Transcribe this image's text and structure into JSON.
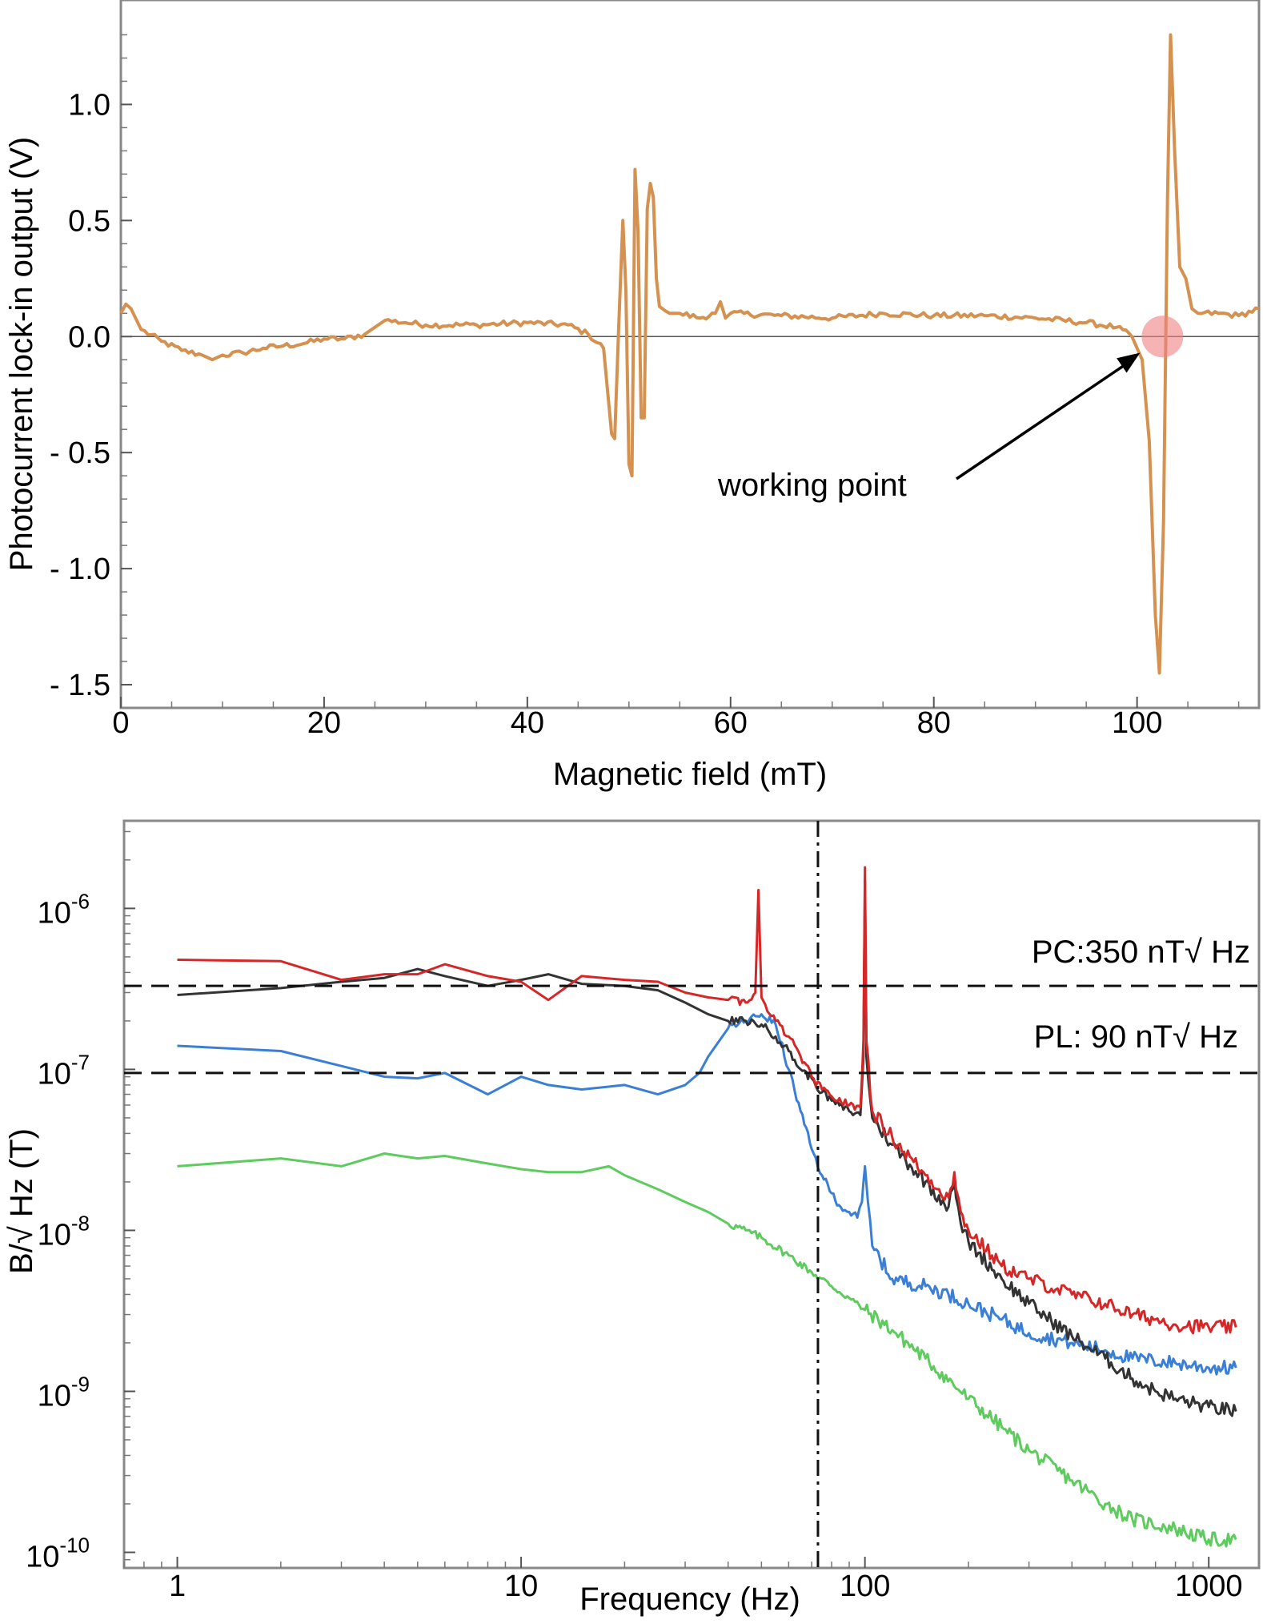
{
  "chart_data": [
    {
      "type": "line",
      "xlabel": "Magnetic field (mT)",
      "ylabel": "Photocurrent lock-in output (V)",
      "xlim": [
        0,
        112
      ],
      "ylim": [
        -1.6,
        1.45
      ],
      "xticks": [
        "0",
        "20",
        "40",
        "60",
        "80",
        "100"
      ],
      "yticks": [
        "1.0",
        "0.5",
        "0.0",
        "- 0.5",
        "- 1.0",
        "- 1.5"
      ],
      "grid": false,
      "annotation": {
        "text": "working point",
        "x": 102.5,
        "y": 0.0
      },
      "colors": {
        "series": "#d4914f",
        "marker": "#f08080",
        "zero_line": "#555555"
      },
      "series": [
        {
          "x": [
            0,
            0.5,
            1,
            2,
            4,
            6,
            8,
            9,
            10,
            12,
            14,
            16,
            18,
            20,
            22,
            24,
            25,
            26,
            28,
            30,
            35,
            40,
            44,
            46,
            47.5,
            48.3,
            48.6,
            49.0,
            49.4,
            49.7,
            50.0,
            50.3,
            50.6,
            50.9,
            51.2,
            51.5,
            51.8,
            52.1,
            52.4,
            52.7,
            53.0,
            53.3,
            53.6,
            54.0,
            55,
            57,
            58.5,
            59,
            59.5,
            60,
            65,
            70,
            75,
            80,
            85,
            90,
            95,
            98,
            99.5,
            100.5,
            101.2,
            101.8,
            102.2,
            102.6,
            103.0,
            103.3,
            103.7,
            104.2,
            104.8,
            105.4,
            106,
            108,
            110,
            112
          ],
          "y": [
            0.1,
            0.14,
            0.12,
            0.03,
            -0.02,
            -0.06,
            -0.08,
            -0.1,
            -0.08,
            -0.07,
            -0.05,
            -0.04,
            -0.03,
            -0.01,
            -0.01,
            0.01,
            0.04,
            0.07,
            0.06,
            0.05,
            0.05,
            0.06,
            0.05,
            0.01,
            -0.05,
            -0.42,
            -0.44,
            0.05,
            0.5,
            0.2,
            -0.55,
            -0.6,
            0.72,
            0.45,
            -0.35,
            -0.35,
            0.55,
            0.66,
            0.6,
            0.25,
            0.13,
            0.12,
            0.11,
            0.1,
            0.1,
            0.08,
            0.1,
            0.15,
            0.08,
            0.1,
            0.09,
            0.08,
            0.1,
            0.09,
            0.09,
            0.08,
            0.06,
            0.04,
            0.0,
            -0.1,
            -0.45,
            -1.2,
            -1.45,
            -0.8,
            0.6,
            1.3,
            0.8,
            0.3,
            0.25,
            0.12,
            0.1,
            0.1,
            0.09,
            0.12
          ]
        }
      ]
    },
    {
      "type": "line",
      "xlabel": "Frequency (Hz)",
      "ylabel": "B/√ Hz (T)",
      "xscale": "log",
      "yscale": "log",
      "xlim": [
        0.7,
        1400
      ],
      "ylim": [
        8e-11,
        3.5e-06
      ],
      "xticks": [
        "1",
        "10",
        "100",
        "1000"
      ],
      "yticks": [
        "10",
        "10",
        "10",
        "10",
        "10"
      ],
      "ytick_exponents": [
        "-6",
        "-7",
        "-8",
        "-9",
        "-10"
      ],
      "grid": false,
      "reference_lines": [
        {
          "label": "PC:350 nT√ Hz",
          "value": 3.3e-07,
          "style": "dashed"
        },
        {
          "label": "PL: 90 nT√ Hz",
          "value": 9.5e-08,
          "style": "dashed"
        }
      ],
      "vertical_line": {
        "value": 73,
        "style": "dash-dot"
      },
      "colors": {
        "red": "#d62728",
        "black": "#333333",
        "blue": "#3a7fd5",
        "green": "#5ecb5e"
      },
      "series": [
        {
          "color": "red",
          "x": [
            1,
            2,
            3,
            4,
            5,
            6,
            8,
            10,
            12,
            15,
            20,
            25,
            30,
            35,
            40,
            45,
            48,
            49,
            50,
            52,
            55,
            60,
            65,
            70,
            75,
            80,
            90,
            97,
            99,
            100,
            101,
            105,
            120,
            150,
            175,
            180,
            182,
            184,
            190,
            200,
            250,
            300,
            400,
            500,
            600,
            700,
            800,
            1000,
            1200
          ],
          "y": [
            4.8e-07,
            4.7e-07,
            3.6e-07,
            3.9e-07,
            3.9e-07,
            4.5e-07,
            3.8e-07,
            3.5e-07,
            2.7e-07,
            3.8e-07,
            3.6e-07,
            3.5e-07,
            3e-07,
            2.8e-07,
            2.7e-07,
            2.6e-07,
            3e-07,
            1.3e-06,
            2.8e-07,
            2.3e-07,
            2e-07,
            1.6e-07,
            1.2e-07,
            9e-08,
            7.5e-08,
            6.8e-08,
            6e-08,
            5.8e-08,
            1.5e-07,
            1.8e-06,
            1.5e-07,
            5.5e-08,
            3.8e-08,
            2.2e-08,
            1.6e-08,
            1.9e-08,
            2.3e-08,
            1.8e-08,
            1.3e-08,
            1e-08,
            6e-09,
            5e-09,
            4e-09,
            3.5e-09,
            3e-09,
            2.8e-09,
            2.6e-09,
            2.5e-09,
            2.5e-09
          ]
        },
        {
          "color": "black",
          "x": [
            1,
            2,
            3,
            4,
            5,
            6,
            8,
            10,
            12,
            15,
            20,
            25,
            30,
            35,
            40,
            45,
            50,
            55,
            60,
            65,
            70,
            75,
            80,
            90,
            97,
            99,
            100,
            101,
            105,
            120,
            150,
            175,
            180,
            182,
            184,
            190,
            200,
            250,
            300,
            400,
            500,
            600,
            700,
            800,
            1000,
            1200
          ],
          "y": [
            2.9e-07,
            3.2e-07,
            3.5e-07,
            3.7e-07,
            4.2e-07,
            3.8e-07,
            3.3e-07,
            3.6e-07,
            3.9e-07,
            3.4e-07,
            3.3e-07,
            3.1e-07,
            2.6e-07,
            2.2e-07,
            2e-07,
            2e-07,
            1.9e-07,
            1.6e-07,
            1.3e-07,
            1e-07,
            8.8e-08,
            7.2e-08,
            6.4e-08,
            5.5e-08,
            5.2e-08,
            1.2e-07,
            1.5e-06,
            1.2e-07,
            5e-08,
            3.4e-08,
            2e-08,
            1.4e-08,
            1.8e-08,
            2.1e-08,
            1.6e-08,
            1.1e-08,
            8.5e-09,
            5e-09,
            3.5e-09,
            2.2e-09,
            1.6e-09,
            1.2e-09,
            1e-09,
            9e-10,
            8e-10,
            7.5e-10
          ]
        },
        {
          "color": "blue",
          "x": [
            1,
            2,
            3,
            4,
            5,
            6,
            8,
            10,
            12,
            15,
            20,
            25,
            30,
            33,
            35,
            40,
            45,
            50,
            55,
            60,
            65,
            70,
            75,
            80,
            85,
            90,
            95,
            98,
            100,
            102,
            105,
            120,
            150,
            175,
            200,
            250,
            300,
            400,
            500,
            600,
            800,
            1000,
            1200
          ],
          "y": [
            1.4e-07,
            1.3e-07,
            1.05e-07,
            9e-08,
            8.8e-08,
            9.5e-08,
            7e-08,
            9e-08,
            8e-08,
            7.5e-08,
            8e-08,
            7e-08,
            8e-08,
            9.5e-08,
            1.2e-07,
            1.8e-07,
            2e-07,
            2.2e-07,
            1.9e-07,
            1e-07,
            5.5e-08,
            3.2e-08,
            2.2e-08,
            1.7e-08,
            1.4e-08,
            1.3e-08,
            1.2e-08,
            1.5e-08,
            2.5e-08,
            1.5e-08,
            8e-09,
            5e-09,
            4.5e-09,
            4e-09,
            3.5e-09,
            2.8e-09,
            2.3e-09,
            2e-09,
            1.8e-09,
            1.6e-09,
            1.5e-09,
            1.4e-09,
            1.4e-09
          ]
        },
        {
          "color": "green",
          "x": [
            1,
            2,
            3,
            4,
            5,
            6,
            8,
            10,
            12,
            15,
            18,
            20,
            25,
            30,
            35,
            40,
            45,
            50,
            60,
            70,
            80,
            90,
            100,
            120,
            150,
            200,
            250,
            300,
            400,
            500,
            600,
            800,
            1000,
            1200
          ],
          "y": [
            2.5e-08,
            2.8e-08,
            2.5e-08,
            3e-08,
            2.8e-08,
            2.9e-08,
            2.6e-08,
            2.4e-08,
            2.3e-08,
            2.3e-08,
            2.5e-08,
            2.2e-08,
            1.8e-08,
            1.5e-08,
            1.3e-08,
            1.1e-08,
            1e-08,
            9e-09,
            7e-09,
            5.5e-09,
            4.5e-09,
            3.8e-09,
            3.2e-09,
            2.4e-09,
            1.6e-09,
            9e-10,
            6e-10,
            4.3e-10,
            2.8e-10,
            2e-10,
            1.6e-10,
            1.4e-10,
            1.2e-10,
            1.2e-10
          ]
        }
      ]
    }
  ]
}
